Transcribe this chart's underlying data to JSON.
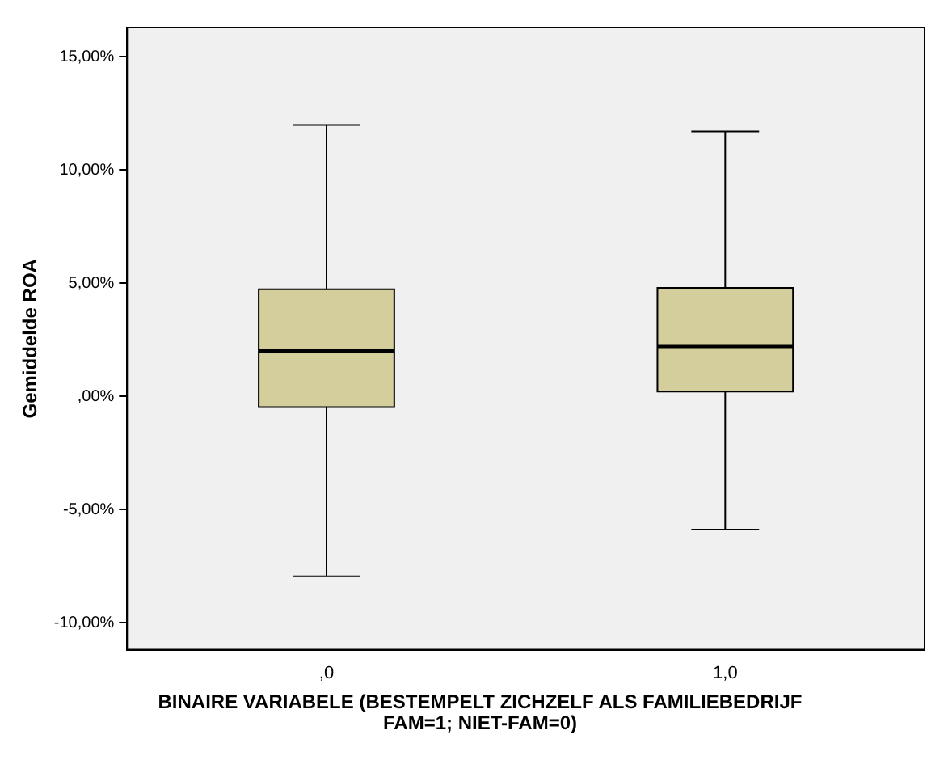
{
  "chart_data": {
    "type": "box",
    "xlabel": "BINAIRE VARIABELE (BESTEMPELT ZICHZELF ALS FAMILIEBEDRIJF FAM=1; NIET-FAM=0)",
    "ylabel": "Gemiddelde ROA",
    "categories": [
      ",0",
      "1,0"
    ],
    "boxes": [
      {
        "low": -7.95,
        "q1": -0.48,
        "median": 1.99,
        "q3": 4.73,
        "high": 11.99
      },
      {
        "low": -5.89,
        "q1": 0.21,
        "median": 2.19,
        "q3": 4.79,
        "high": 11.71
      }
    ],
    "color": "#d3ce9c",
    "ylim": [
      -11.2,
      16.3
    ],
    "yticks": [
      {
        "value": -10,
        "label": "-10,00%"
      },
      {
        "value": -5,
        "label": "-5,00%"
      },
      {
        "value": 0,
        "label": ",00%"
      },
      {
        "value": 5,
        "label": "5,00%"
      },
      {
        "value": 10,
        "label": "10,00%"
      },
      {
        "value": 15,
        "label": "15,00%"
      }
    ],
    "grid": false,
    "legend": false
  }
}
